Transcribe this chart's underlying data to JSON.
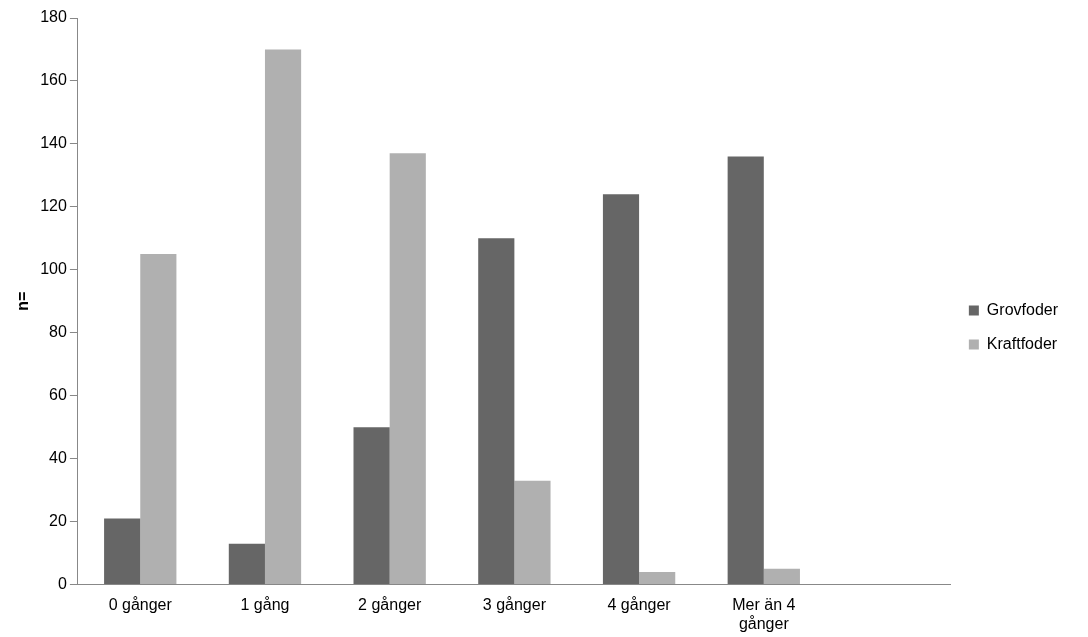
{
  "chart_data": {
    "type": "bar",
    "ylabel": "n=",
    "categories": [
      "0 gånger",
      "1 gång",
      "2 gånger",
      "3 gånger",
      "4 gånger",
      "Mer än 4 gånger",
      null
    ],
    "series": [
      {
        "name": "Grovfoder",
        "color": "#666666",
        "values": [
          21,
          13,
          50,
          110,
          124,
          136,
          null
        ]
      },
      {
        "name": "Kraftfoder",
        "color": "#b0b0b0",
        "values": [
          105,
          170,
          137,
          33,
          4,
          5,
          null
        ]
      }
    ],
    "ylim": [
      0,
      180
    ],
    "yticks": [
      0,
      20,
      40,
      60,
      80,
      100,
      120,
      140,
      160,
      180
    ],
    "grid": false,
    "legend": "right"
  }
}
